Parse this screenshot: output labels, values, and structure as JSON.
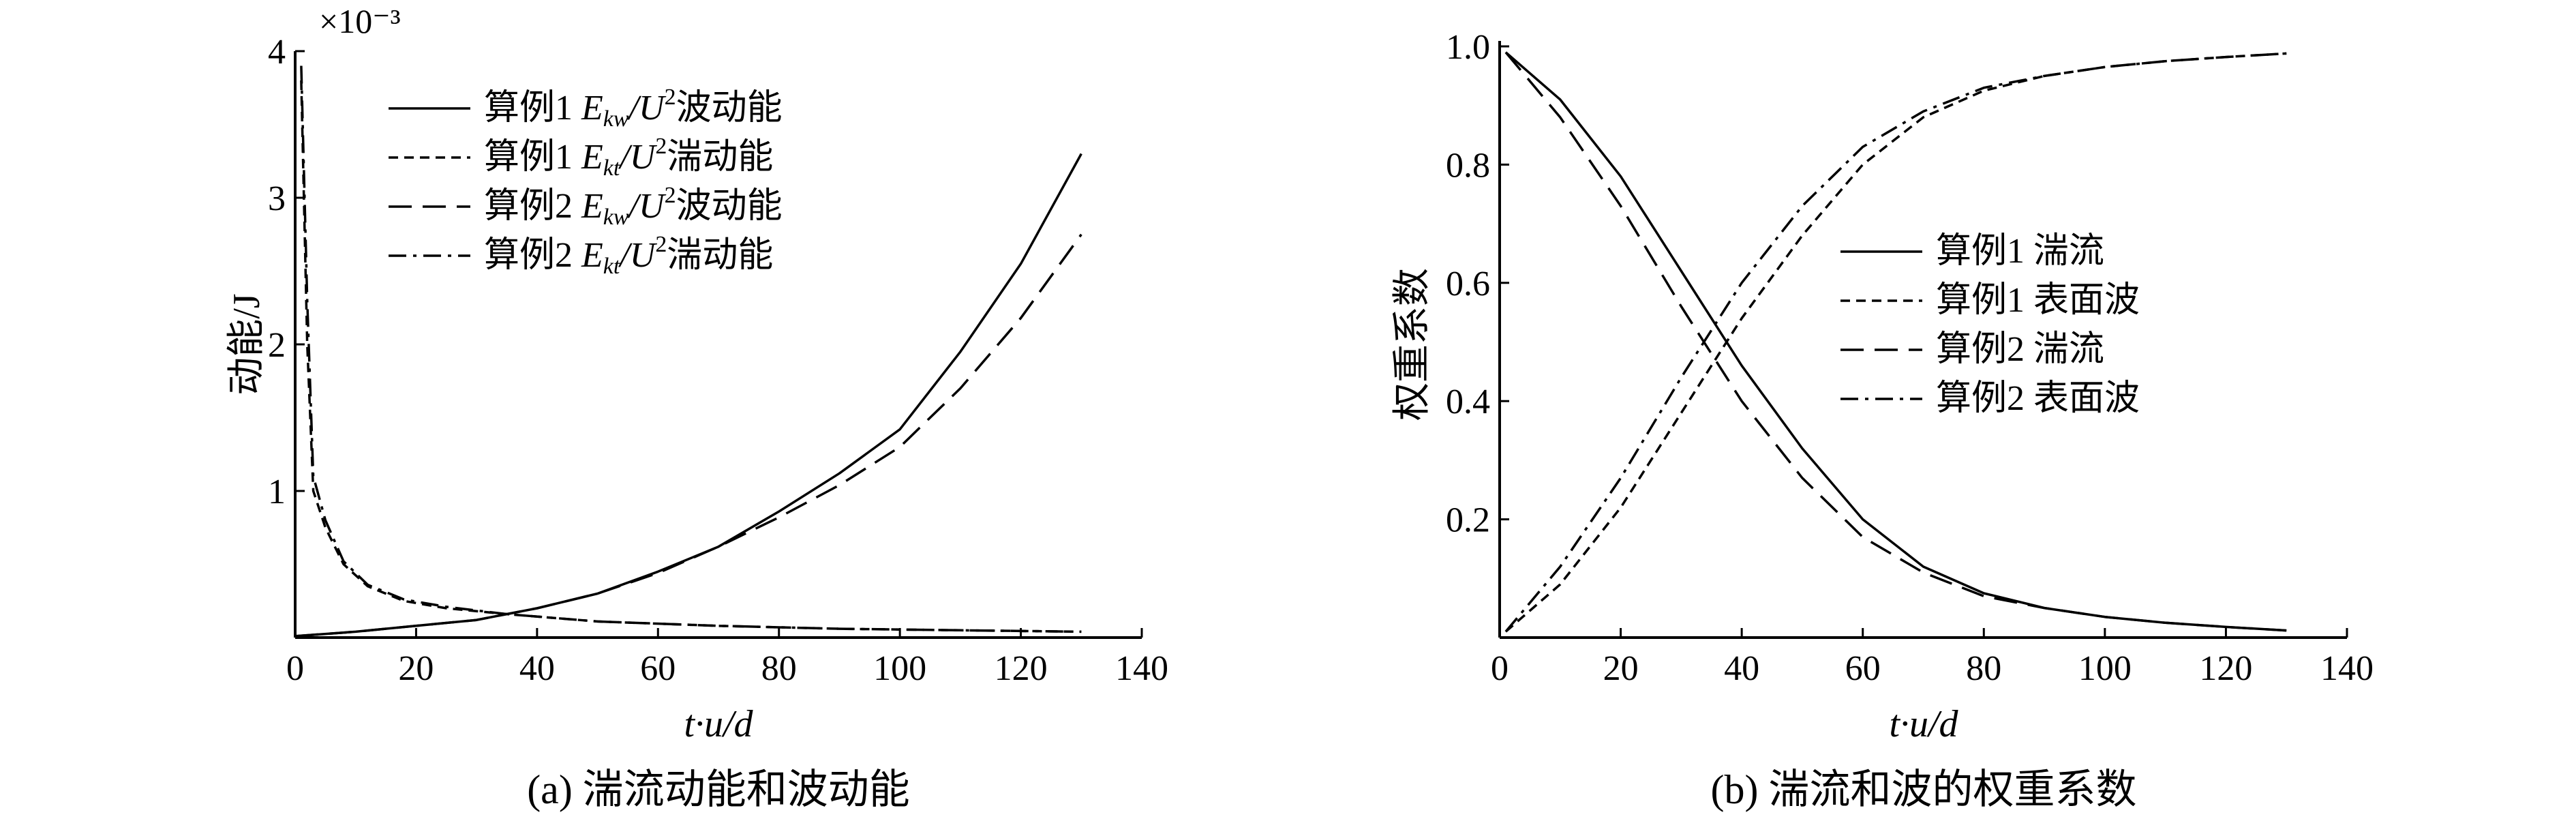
{
  "chart_data": [
    {
      "type": "line",
      "panel": "a",
      "caption": "(a) 湍流动能和波动能",
      "xlabel": "t·u/d",
      "ylabel": "动能/J",
      "y_multiplier": "×10⁻³",
      "xlim": [
        0,
        140
      ],
      "ylim": [
        0,
        4
      ],
      "xticks": [
        "0",
        "20",
        "40",
        "60",
        "80",
        "100",
        "120",
        "140"
      ],
      "yticks": [
        "1",
        "2",
        "3",
        "4"
      ],
      "grid": false,
      "legend_position": "top-center",
      "series": [
        {
          "name": "算例1 E_kw/U²波动能",
          "legend": {
            "prefix": "算例1 ",
            "sym": "E",
            "sub": "kw",
            "mid": "/U",
            "sup": "2",
            "suffix": "波动能"
          },
          "style": "solid",
          "x": [
            0,
            10,
            20,
            30,
            40,
            50,
            60,
            70,
            80,
            90,
            100,
            110,
            120,
            130
          ],
          "y": [
            0.01,
            0.04,
            0.08,
            0.12,
            0.2,
            0.3,
            0.45,
            0.62,
            0.86,
            1.12,
            1.42,
            1.95,
            2.55,
            3.3
          ]
        },
        {
          "name": "算例1 E_kt/U²湍动能",
          "legend": {
            "prefix": "算例1 ",
            "sym": "E",
            "sub": "kt",
            "mid": "/U",
            "sup": "2",
            "suffix": "湍动能"
          },
          "style": "short-dash",
          "x": [
            1,
            2,
            3,
            5,
            8,
            12,
            18,
            25,
            35,
            50,
            70,
            90,
            110,
            130
          ],
          "y": [
            3.8,
            2.0,
            1.0,
            0.75,
            0.5,
            0.35,
            0.25,
            0.2,
            0.16,
            0.11,
            0.08,
            0.06,
            0.05,
            0.04
          ]
        },
        {
          "name": "算例2 E_kw/U²波动能",
          "legend": {
            "prefix": "算例2 ",
            "sym": "E",
            "sub": "kw",
            "mid": "/U",
            "sup": "2",
            "suffix": "波动能"
          },
          "style": "long-dash",
          "x": [
            0,
            10,
            20,
            30,
            40,
            50,
            60,
            70,
            80,
            90,
            100,
            110,
            120,
            130
          ],
          "y": [
            0.01,
            0.04,
            0.08,
            0.12,
            0.2,
            0.3,
            0.44,
            0.62,
            0.82,
            1.04,
            1.3,
            1.7,
            2.18,
            2.75
          ]
        },
        {
          "name": "算例2 E_kt/U²湍动能",
          "legend": {
            "prefix": "算例2 ",
            "sym": "E",
            "sub": "kt",
            "mid": "/U",
            "sup": "2",
            "suffix": "湍动能"
          },
          "style": "dash-dot",
          "x": [
            1,
            2,
            3,
            5,
            8,
            12,
            18,
            25,
            35,
            50,
            70,
            90,
            110,
            130
          ],
          "y": [
            3.9,
            2.3,
            1.1,
            0.8,
            0.52,
            0.36,
            0.26,
            0.21,
            0.16,
            0.11,
            0.08,
            0.06,
            0.05,
            0.04
          ]
        }
      ]
    },
    {
      "type": "line",
      "panel": "b",
      "caption": "(b) 湍流和波的权重系数",
      "xlabel": "t·u/d",
      "ylabel": "权重系数",
      "xlim": [
        0,
        140
      ],
      "ylim": [
        0,
        1.0
      ],
      "xticks": [
        "0",
        "20",
        "40",
        "60",
        "80",
        "100",
        "120",
        "140"
      ],
      "yticks": [
        "0.2",
        "0.4",
        "0.6",
        "0.8",
        "1.0"
      ],
      "grid": false,
      "legend_position": "center-right",
      "series": [
        {
          "name": "算例1 湍流",
          "style": "solid",
          "x": [
            1,
            10,
            20,
            30,
            40,
            50,
            60,
            70,
            80,
            90,
            100,
            110,
            120,
            130
          ],
          "y": [
            0.99,
            0.91,
            0.78,
            0.62,
            0.46,
            0.32,
            0.2,
            0.12,
            0.075,
            0.05,
            0.035,
            0.025,
            0.018,
            0.012
          ]
        },
        {
          "name": "算例1 表面波",
          "style": "short-dash",
          "x": [
            1,
            10,
            20,
            30,
            40,
            50,
            60,
            70,
            80,
            90,
            100,
            110,
            120,
            130
          ],
          "y": [
            0.01,
            0.09,
            0.22,
            0.38,
            0.54,
            0.68,
            0.8,
            0.88,
            0.925,
            0.95,
            0.965,
            0.975,
            0.982,
            0.988
          ]
        },
        {
          "name": "算例2 湍流",
          "style": "long-dash",
          "x": [
            1,
            10,
            20,
            30,
            40,
            50,
            60,
            70,
            80,
            90,
            100,
            110,
            120,
            130
          ],
          "y": [
            0.99,
            0.88,
            0.73,
            0.56,
            0.4,
            0.27,
            0.17,
            0.11,
            0.07,
            0.05,
            0.035,
            0.025,
            0.018,
            0.012
          ]
        },
        {
          "name": "算例2 表面波",
          "style": "dash-dot",
          "x": [
            1,
            10,
            20,
            30,
            40,
            50,
            60,
            70,
            80,
            90,
            100,
            110,
            120,
            130
          ],
          "y": [
            0.01,
            0.12,
            0.27,
            0.44,
            0.6,
            0.73,
            0.83,
            0.89,
            0.93,
            0.95,
            0.965,
            0.975,
            0.982,
            0.988
          ]
        }
      ]
    }
  ]
}
